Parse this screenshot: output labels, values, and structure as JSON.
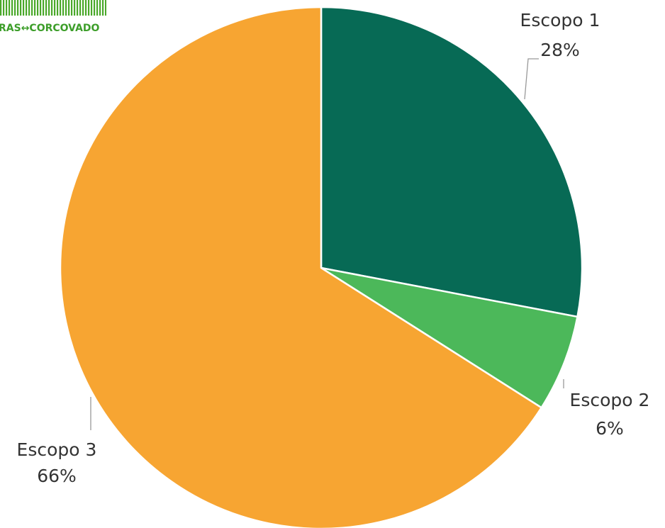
{
  "logo": "RAS↔CORCOVADO",
  "chart_data": {
    "type": "pie",
    "categories": [
      "Escopo 1",
      "Escopo 2",
      "Escopo 3"
    ],
    "values": [
      28,
      6,
      66
    ],
    "value_labels": [
      "28%",
      "6%",
      "66%"
    ],
    "colors": [
      "#076a55",
      "#4cb85a",
      "#f7a532"
    ]
  }
}
